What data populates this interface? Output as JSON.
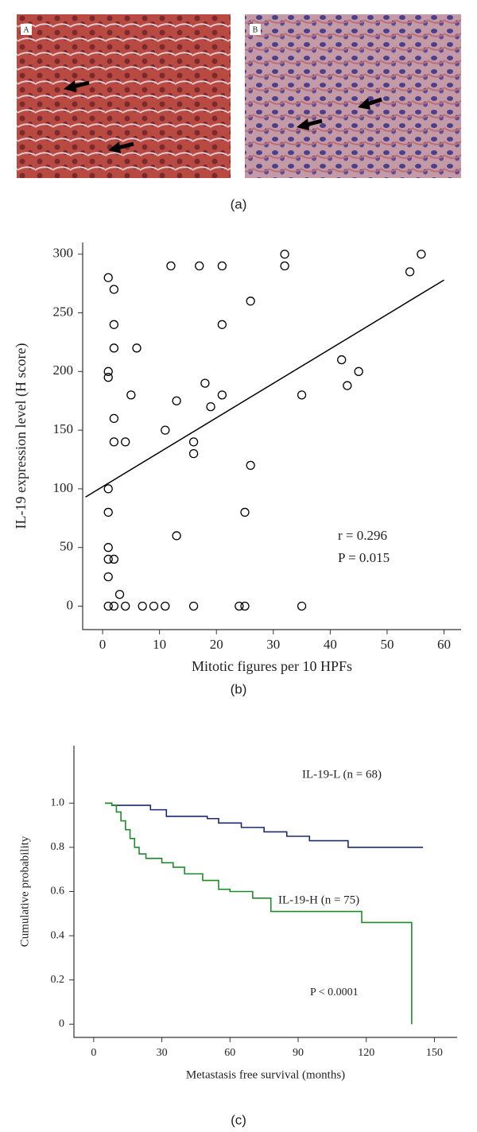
{
  "panel_a": {
    "image_labels": [
      "A",
      "B"
    ]
  },
  "captions": [
    "(a)",
    "(b)",
    "(c)"
  ],
  "chart_data": [
    {
      "type": "scatter",
      "x_label": "Mitotic figures per 10 HPFs",
      "y_label": "IL-19 expression level (H score)",
      "x": [
        1,
        2,
        2,
        2,
        1,
        1,
        2,
        2,
        4,
        5,
        6,
        1,
        1,
        1,
        1,
        2,
        1,
        3,
        1,
        2,
        4,
        7,
        9,
        11,
        11,
        12,
        13,
        13,
        16,
        16,
        16,
        17,
        18,
        19,
        21,
        21,
        21,
        24,
        25,
        25,
        26,
        26,
        32,
        32,
        35,
        35,
        42,
        43,
        45,
        54,
        56
      ],
      "values": [
        280,
        270,
        240,
        220,
        200,
        195,
        160,
        140,
        140,
        180,
        220,
        100,
        80,
        50,
        40,
        40,
        25,
        10,
        0,
        0,
        0,
        0,
        0,
        0,
        150,
        290,
        175,
        60,
        140,
        130,
        0,
        290,
        190,
        170,
        290,
        240,
        180,
        0,
        0,
        80,
        260,
        120,
        300,
        290,
        180,
        0,
        210,
        188,
        200,
        285,
        300
      ],
      "color": "#000000",
      "trend_line": {
        "x": [
          -3,
          60
        ],
        "values": [
          93,
          278
        ]
      },
      "xlim": [
        -3.5,
        63
      ],
      "ylim": [
        -20,
        310
      ],
      "xticks": [
        0,
        10,
        20,
        30,
        40,
        50,
        60
      ],
      "yticks": [
        0,
        50,
        100,
        150,
        200,
        250,
        300
      ],
      "annotations": [
        "r = 0.296",
        "P = 0.015"
      ]
    },
    {
      "type": "step",
      "x_label": "Metastasis free survival (months)",
      "y_label": "Cumulative probability",
      "series": [
        {
          "name": "IL-19-L (n = 68)",
          "color": "#1c2a6e",
          "x": [
            5,
            8,
            25,
            32,
            50,
            55,
            65,
            75,
            85,
            95,
            112,
            145
          ],
          "values": [
            1.0,
            0.99,
            0.97,
            0.94,
            0.93,
            0.91,
            0.89,
            0.87,
            0.85,
            0.83,
            0.8,
            0.8
          ]
        },
        {
          "name": "IL-19-H (n = 75)",
          "color": "#1f8a2c",
          "x": [
            5,
            8,
            10,
            12,
            14,
            16,
            18,
            20,
            23,
            30,
            35,
            40,
            48,
            55,
            60,
            70,
            78,
            118,
            140,
            140
          ],
          "values": [
            1.0,
            0.99,
            0.96,
            0.92,
            0.88,
            0.84,
            0.8,
            0.77,
            0.75,
            0.73,
            0.71,
            0.68,
            0.65,
            0.61,
            0.6,
            0.57,
            0.51,
            0.46,
            0.46,
            0
          ]
        }
      ],
      "xlim": [
        -8.7,
        160
      ],
      "ylim": [
        -0.06,
        1.26
      ],
      "xticks": [
        0,
        30,
        60,
        90,
        120,
        150
      ],
      "yticks": [
        0,
        0.2,
        0.4,
        0.6,
        0.8,
        {
          "value": 1,
          "label": "1.0"
        }
      ],
      "annotations": [
        "P < 0.0001"
      ]
    }
  ]
}
